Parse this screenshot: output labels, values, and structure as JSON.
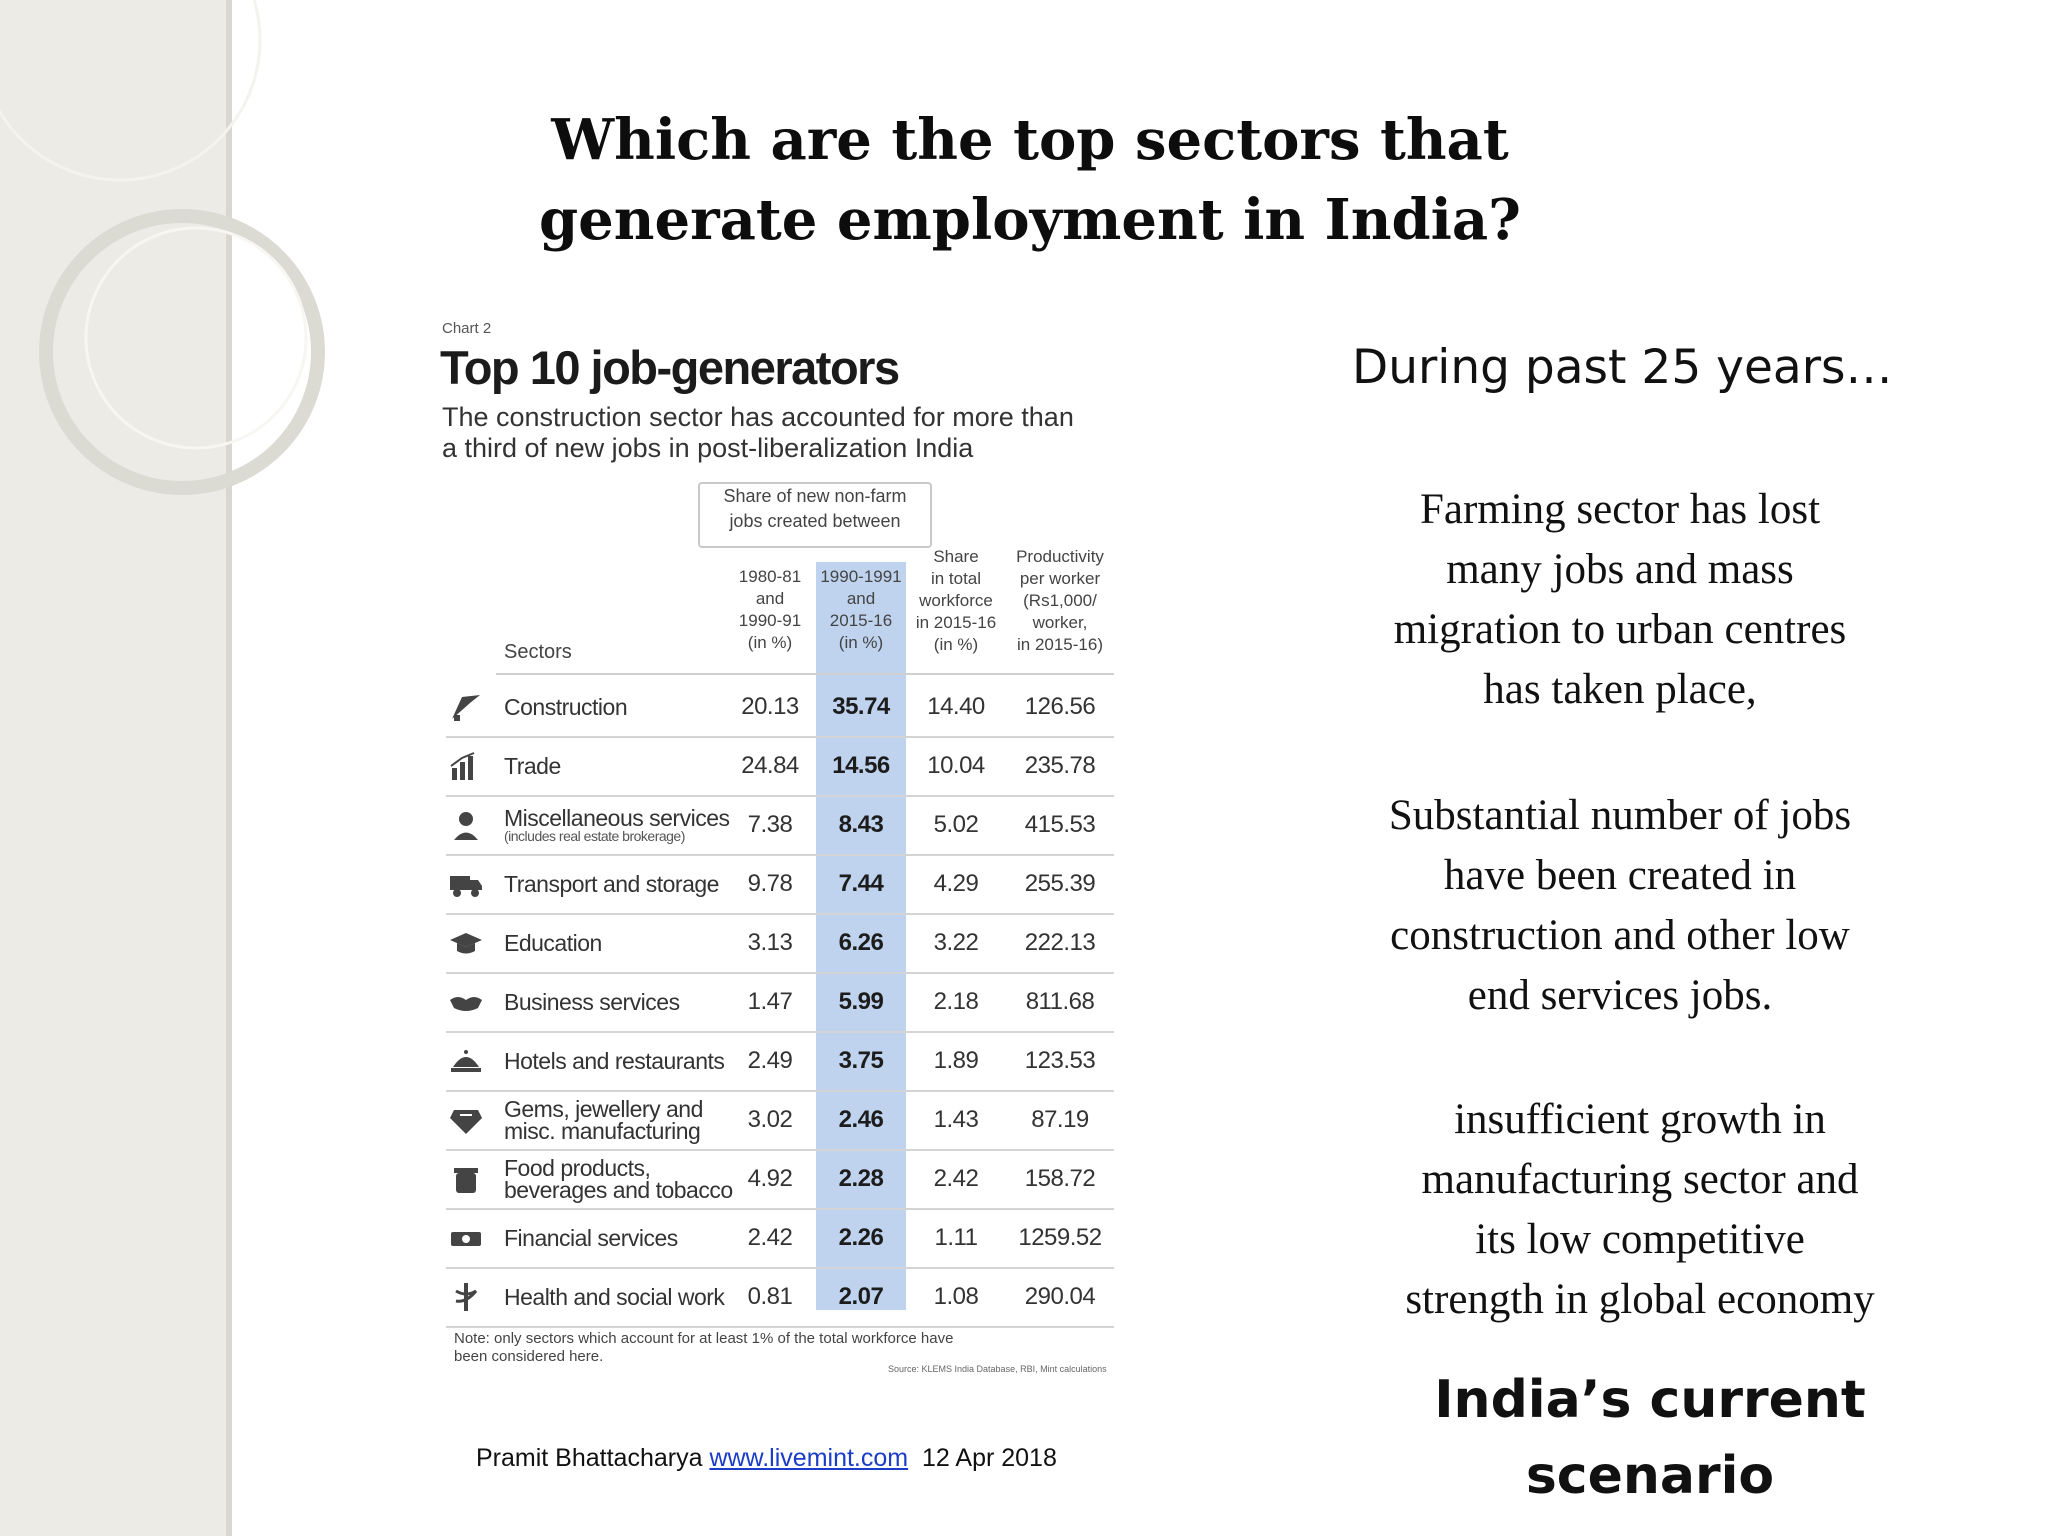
{
  "slide": {
    "title_lines": [
      "Which are the top sectors that",
      "generate employment in India?"
    ],
    "subheading": "During past 25 years…",
    "paragraphs": [
      {
        "lines": [
          "Farming sector has lost",
          "many jobs and mass",
          "migration to urban centres",
          "has taken place,"
        ]
      },
      {
        "lines": [
          "Substantial number of jobs",
          "have been created in",
          "construction and other low",
          "end services jobs."
        ]
      },
      {
        "lines": [
          "insufficient growth in",
          "manufacturing sector and",
          "its low competitive",
          "strength in global economy"
        ]
      }
    ],
    "scenario_lines": [
      "India’s current",
      "scenario"
    ],
    "credit": {
      "author": "Pramit Bhattacharya",
      "link": "www.livemint.com",
      "date": "12 Apr 2018"
    }
  },
  "chart_data": {
    "type": "table",
    "label": "Chart 2",
    "title": "Top 10 job-generators",
    "subtitle_lines": [
      "The construction sector  has accounted for more than",
      "a third of new jobs in post-liberalization India"
    ],
    "share_header_lines": [
      "Share of new non-farm",
      "jobs created between"
    ],
    "sectors_header": "Sectors",
    "columns": [
      {
        "lines": [
          "1980-81",
          "and",
          "1990-91",
          "(in %)"
        ]
      },
      {
        "lines": [
          "1990-1991",
          "and",
          "2015-16",
          "(in %)"
        ]
      },
      {
        "lines": [
          "Share",
          "in total",
          "workforce",
          "in 2015-16",
          "(in %)"
        ]
      },
      {
        "lines": [
          "Productivity",
          "per worker",
          "(Rs1,000/",
          "worker,",
          "in 2015-16)"
        ]
      }
    ],
    "rows": [
      {
        "icon": "crane-icon",
        "sector": "Construction",
        "note": "",
        "values": [
          "20.13",
          "35.74",
          "14.40",
          "126.56"
        ]
      },
      {
        "icon": "bar-chart-icon",
        "sector": "Trade",
        "note": "",
        "values": [
          "24.84",
          "14.56",
          "10.04",
          "235.78"
        ]
      },
      {
        "icon": "person-icon",
        "sector": "Miscellaneous services",
        "note": "(includes real estate brokerage)",
        "values": [
          "7.38",
          "8.43",
          "5.02",
          "415.53"
        ]
      },
      {
        "icon": "truck-icon",
        "sector": "Transport and storage",
        "note": "",
        "values": [
          "9.78",
          "7.44",
          "4.29",
          "255.39"
        ]
      },
      {
        "icon": "graduation-cap-icon",
        "sector": "Education",
        "note": "",
        "values": [
          "3.13",
          "6.26",
          "3.22",
          "222.13"
        ]
      },
      {
        "icon": "handshake-icon",
        "sector": "Business services",
        "note": "",
        "values": [
          "1.47",
          "5.99",
          "2.18",
          "811.68"
        ]
      },
      {
        "icon": "cloche-icon",
        "sector": "Hotels and restaurants",
        "note": "",
        "values": [
          "2.49",
          "3.75",
          "1.89",
          "123.53"
        ]
      },
      {
        "icon": "gem-icon",
        "sector": "Gems, jewellery and misc. manufacturing",
        "note": "",
        "values": [
          "3.02",
          "2.46",
          "1.43",
          "87.19"
        ]
      },
      {
        "icon": "food-jar-icon",
        "sector": "Food products, beverages and tobacco",
        "note": "",
        "values": [
          "4.92",
          "2.28",
          "2.42",
          "158.72"
        ]
      },
      {
        "icon": "money-icon",
        "sector": "Financial services",
        "note": "",
        "values": [
          "2.42",
          "2.26",
          "1.11",
          "1259.52"
        ]
      },
      {
        "icon": "caduceus-icon",
        "sector": "Health and social work",
        "note": "",
        "values": [
          "0.81",
          "2.07",
          "1.08",
          "290.04"
        ]
      }
    ],
    "note_lines": [
      "Note: only sectors which account for at least 1% of the total workforce have",
      "been considered here."
    ],
    "source": "Source: KLEMS India Database, RBI, Mint calculations",
    "highlight_color": "#bfd3ee"
  }
}
